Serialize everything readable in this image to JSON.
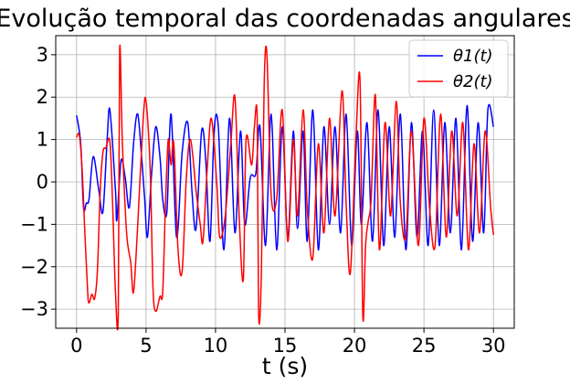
{
  "chart_data": {
    "type": "line",
    "title": "Evolução temporal das coordenadas angulares",
    "xlabel": "t (s)",
    "ylabel": "",
    "xlim": [
      -1.5,
      31.5
    ],
    "ylim": [
      -3.45,
      3.45
    ],
    "xticks": [
      0,
      5,
      10,
      15,
      20,
      25,
      30
    ],
    "yticks": [
      -3,
      -2,
      -1,
      0,
      1,
      2,
      3
    ],
    "grid": true,
    "legend_position": "top-right",
    "series": [
      {
        "name": "θ1(t)",
        "color": "#0000ff",
        "points": [
          [
            0,
            1.57
          ],
          [
            0.3,
            0.9
          ],
          [
            0.5,
            -0.6
          ],
          [
            0.7,
            -0.5
          ],
          [
            0.9,
            -0.4
          ],
          [
            1.2,
            0.6
          ],
          [
            1.6,
            -0.2
          ],
          [
            1.9,
            -0.7
          ],
          [
            2.2,
            1.0
          ],
          [
            2.4,
            1.7
          ],
          [
            2.8,
            -0.2
          ],
          [
            2.9,
            -0.9
          ],
          [
            3.2,
            0.5
          ],
          [
            3.5,
            0.1
          ],
          [
            3.8,
            -0.6
          ],
          [
            4.1,
            0.9
          ],
          [
            4.4,
            1.6
          ],
          [
            4.7,
            0.5
          ],
          [
            4.9,
            -0.4
          ],
          [
            5.1,
            -1.3
          ],
          [
            5.4,
            0.2
          ],
          [
            5.7,
            1.3
          ],
          [
            6.0,
            0.6
          ],
          [
            6.2,
            -0.4
          ],
          [
            6.5,
            -0.7
          ],
          [
            6.8,
            1.6
          ],
          [
            7.2,
            -1.3
          ],
          [
            7.6,
            0.7
          ],
          [
            8.0,
            1.4
          ],
          [
            8.3,
            -0.2
          ],
          [
            8.6,
            -1.1
          ],
          [
            9.0,
            1.2
          ],
          [
            9.3,
            0.5
          ],
          [
            9.6,
            -1.4
          ],
          [
            9.9,
            1.2
          ],
          [
            10.2,
            1.3
          ],
          [
            10.6,
            -1.6
          ],
          [
            11.0,
            1.5
          ],
          [
            11.4,
            -1.2
          ],
          [
            11.8,
            1.2
          ],
          [
            12.1,
            -1.0
          ],
          [
            12.5,
            0.1
          ],
          [
            12.9,
            0.2
          ],
          [
            13.2,
            1.3
          ],
          [
            13.6,
            -1.5
          ],
          [
            14.0,
            1.6
          ],
          [
            14.4,
            -1.6
          ],
          [
            14.8,
            1.3
          ],
          [
            15.2,
            -1.3
          ],
          [
            15.6,
            1.2
          ],
          [
            15.9,
            -1.1
          ],
          [
            16.3,
            1.2
          ],
          [
            16.6,
            -1.4
          ],
          [
            17.0,
            1.7
          ],
          [
            17.4,
            -1.6
          ],
          [
            17.8,
            1.3
          ],
          [
            18.2,
            -1.0
          ],
          [
            18.6,
            1.3
          ],
          [
            19.0,
            -1.2
          ],
          [
            19.4,
            1.6
          ],
          [
            19.8,
            -1.5
          ],
          [
            20.2,
            1.2
          ],
          [
            20.5,
            -1.0
          ],
          [
            20.9,
            1.4
          ],
          [
            21.3,
            -1.4
          ],
          [
            21.7,
            1.7
          ],
          [
            22.1,
            -1.5
          ],
          [
            22.5,
            1.3
          ],
          [
            22.9,
            -1.3
          ],
          [
            23.3,
            1.6
          ],
          [
            23.7,
            -1.6
          ],
          [
            24.1,
            1.4
          ],
          [
            24.5,
            -1.3
          ],
          [
            24.9,
            1.2
          ],
          [
            25.3,
            -1.5
          ],
          [
            25.7,
            1.7
          ],
          [
            26.1,
            -1.5
          ],
          [
            26.5,
            1.4
          ],
          [
            26.9,
            -1.2
          ],
          [
            27.3,
            1.5
          ],
          [
            27.7,
            -1.6
          ],
          [
            28.1,
            1.8
          ],
          [
            28.5,
            -1.4
          ],
          [
            28.9,
            1.4
          ],
          [
            29.3,
            -1.2
          ],
          [
            29.6,
            1.7
          ],
          [
            30.0,
            1.3
          ]
        ]
      },
      {
        "name": "θ2(t)",
        "color": "#ff0000",
        "points": [
          [
            0,
            1.05
          ],
          [
            0.2,
            1.1
          ],
          [
            0.4,
            0.3
          ],
          [
            0.6,
            -1.2
          ],
          [
            0.8,
            -2.6
          ],
          [
            0.9,
            -2.85
          ],
          [
            1.1,
            -2.65
          ],
          [
            1.3,
            -2.75
          ],
          [
            1.5,
            -2.1
          ],
          [
            1.7,
            -0.2
          ],
          [
            1.9,
            0.7
          ],
          [
            2.1,
            0.8
          ],
          [
            2.4,
            0.95
          ],
          [
            2.6,
            -0.6
          ],
          [
            2.8,
            -2.6
          ],
          [
            3.0,
            -3.1
          ],
          [
            3.1,
            3.1
          ],
          [
            3.3,
            0.9
          ],
          [
            3.6,
            -1.2
          ],
          [
            3.9,
            -1.9
          ],
          [
            4.1,
            -2.6
          ],
          [
            4.4,
            -1.0
          ],
          [
            4.8,
            1.5
          ],
          [
            5.0,
            1.9
          ],
          [
            5.3,
            0.3
          ],
          [
            5.5,
            -2.5
          ],
          [
            5.7,
            -3.05
          ],
          [
            6.0,
            -2.7
          ],
          [
            6.2,
            -2.6
          ],
          [
            6.4,
            -0.5
          ],
          [
            6.6,
            1.0
          ],
          [
            6.8,
            0.4
          ],
          [
            7.0,
            0.9
          ],
          [
            7.3,
            -1.6
          ],
          [
            7.6,
            -2.1
          ],
          [
            7.9,
            0.1
          ],
          [
            8.2,
            1.0
          ],
          [
            8.6,
            -0.2
          ],
          [
            8.9,
            -1.0
          ],
          [
            9.1,
            -1.4
          ],
          [
            9.4,
            0.3
          ],
          [
            9.7,
            1.5
          ],
          [
            10.1,
            -0.1
          ],
          [
            10.3,
            -1.3
          ],
          [
            10.7,
            -0.8
          ],
          [
            11.1,
            0.9
          ],
          [
            11.4,
            2.0
          ],
          [
            11.7,
            -0.8
          ],
          [
            12.0,
            -2.3
          ],
          [
            12.2,
            1.0
          ],
          [
            12.6,
            0.4
          ],
          [
            12.8,
            1.3
          ],
          [
            13.0,
            1.5
          ],
          [
            13.1,
            -3.1
          ],
          [
            13.3,
            -2.2
          ],
          [
            13.5,
            2.3
          ],
          [
            13.7,
            3.0
          ],
          [
            14.0,
            -0.3
          ],
          [
            14.4,
            -0.4
          ],
          [
            14.8,
            1.7
          ],
          [
            15.2,
            -1.4
          ],
          [
            15.6,
            1.0
          ],
          [
            15.9,
            -0.8
          ],
          [
            16.3,
            1.7
          ],
          [
            16.6,
            -0.6
          ],
          [
            17.0,
            -1.8
          ],
          [
            17.4,
            0.9
          ],
          [
            17.8,
            -1.2
          ],
          [
            18.2,
            1.5
          ],
          [
            18.6,
            -0.8
          ],
          [
            19.1,
            2.15
          ],
          [
            19.4,
            -0.5
          ],
          [
            19.7,
            -2.15
          ],
          [
            20.1,
            1.0
          ],
          [
            20.4,
            2.4
          ],
          [
            20.6,
            -3.15
          ],
          [
            20.8,
            -1.5
          ],
          [
            21.0,
            -0.9
          ],
          [
            21.2,
            -0.4
          ],
          [
            21.5,
            2.05
          ],
          [
            21.8,
            -1.6
          ],
          [
            22.2,
            1.4
          ],
          [
            22.6,
            -0.8
          ],
          [
            23.0,
            1.9
          ],
          [
            23.3,
            -0.5
          ],
          [
            23.7,
            -1.3
          ],
          [
            24.1,
            1.2
          ],
          [
            24.6,
            -1.5
          ],
          [
            25.0,
            1.5
          ],
          [
            25.4,
            -0.6
          ],
          [
            25.8,
            -1.5
          ],
          [
            26.2,
            1.6
          ],
          [
            26.6,
            -1.3
          ],
          [
            27.0,
            1.2
          ],
          [
            27.4,
            -0.8
          ],
          [
            27.8,
            1.4
          ],
          [
            28.2,
            -1.6
          ],
          [
            28.6,
            0.9
          ],
          [
            29.0,
            -1.2
          ],
          [
            29.4,
            1.2
          ],
          [
            29.8,
            -0.6
          ],
          [
            30.0,
            -1.25
          ]
        ]
      }
    ]
  }
}
